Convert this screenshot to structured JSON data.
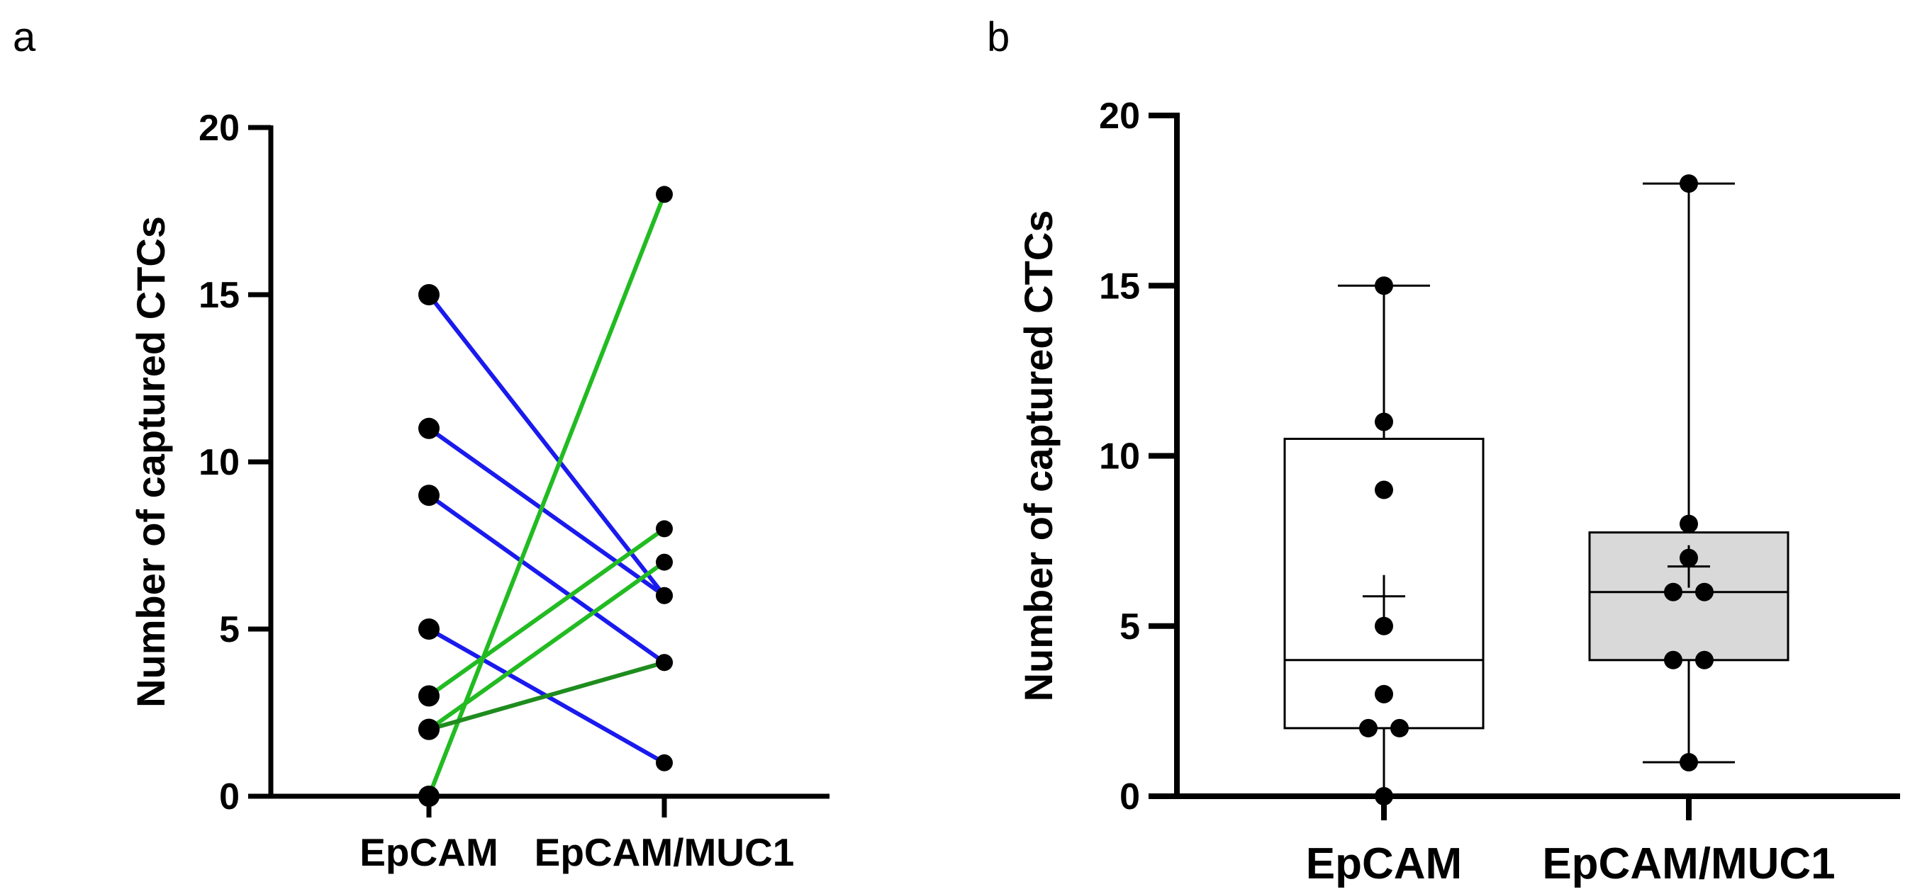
{
  "chart_data": [
    {
      "panel": "a",
      "type": "line",
      "subtype": "paired before-after",
      "categories": [
        "EpCAM",
        "EpCAM/MUC1"
      ],
      "ylabel": "Number of captured CTCs",
      "xlabel": "",
      "ylim": [
        0,
        20
      ],
      "yticks": [
        0,
        5,
        10,
        15,
        20
      ],
      "grid": false,
      "colors": {
        "decrease": "#1a1aee",
        "increase": "#22bb22",
        "increase_dark": "#1e8c1e",
        "marker": "#000000"
      },
      "pairs": [
        {
          "values": [
            15,
            6
          ],
          "color": "#1a1aee"
        },
        {
          "values": [
            11,
            6
          ],
          "color": "#1a1aee"
        },
        {
          "values": [
            9,
            4
          ],
          "color": "#1a1aee"
        },
        {
          "values": [
            5,
            1
          ],
          "color": "#1a1aee"
        },
        {
          "values": [
            0,
            18
          ],
          "color": "#22bb22"
        },
        {
          "values": [
            3,
            8
          ],
          "color": "#22bb22"
        },
        {
          "values": [
            2,
            7
          ],
          "color": "#22bb22"
        },
        {
          "values": [
            2,
            4
          ],
          "color": "#1e8c1e"
        }
      ]
    },
    {
      "panel": "b",
      "type": "box",
      "categories": [
        "EpCAM",
        "EpCAM/MUC1"
      ],
      "ylabel": "Number of captured CTCs",
      "xlabel": "",
      "ylim": [
        0,
        20
      ],
      "yticks": [
        0,
        5,
        10,
        15,
        20
      ],
      "grid": false,
      "boxes": [
        {
          "name": "EpCAM",
          "min": 0,
          "q1": 2,
          "median": 4,
          "q3": 10.5,
          "max": 15,
          "mean": 5.875,
          "fill": "#ffffff",
          "points": [
            15,
            11,
            9,
            5,
            3,
            2,
            2,
            0
          ]
        },
        {
          "name": "EpCAM/MUC1",
          "min": 1,
          "q1": 4,
          "median": 6,
          "q3": 7.75,
          "max": 18,
          "mean": 6.75,
          "fill": "#d9d9d9",
          "points": [
            18,
            8,
            7,
            6,
            6,
            4,
            4,
            1
          ]
        }
      ]
    }
  ],
  "panel_letters": [
    "a",
    "b"
  ]
}
